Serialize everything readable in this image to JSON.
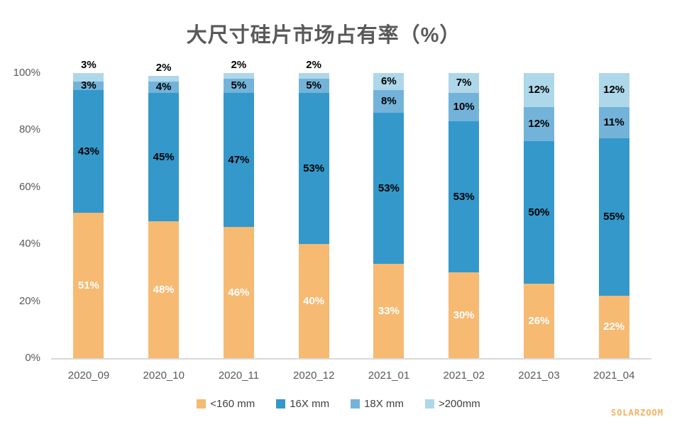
{
  "title": "大尺寸硅片市场占有率（%）",
  "watermark": "SOLARZOOM",
  "colors": {
    "axis_line": "#d9d9d9",
    "axis_text": "#595959",
    "title_text": "#595959",
    "watermark_text": "#f3b163"
  },
  "chart_data": {
    "type": "bar",
    "stacked": true,
    "title": "大尺寸硅片市场占有率（%）",
    "xlabel": "",
    "ylabel": "",
    "ylim": [
      0,
      100
    ],
    "grid": false,
    "legend_position": "bottom",
    "y_ticks": [
      "0%",
      "20%",
      "40%",
      "60%",
      "80%",
      "100%"
    ],
    "categories": [
      "2020_09",
      "2020_10",
      "2020_11",
      "2020_12",
      "2021_01",
      "2021_02",
      "2021_03",
      "2021_04"
    ],
    "series": [
      {
        "name": "<160 mm",
        "color": "#f6ba73",
        "label_color": "#ffffff",
        "values": [
          51,
          48,
          46,
          40,
          33,
          30,
          26,
          22
        ]
      },
      {
        "name": "16X mm",
        "color": "#3498cb",
        "label_color": "#000000",
        "values": [
          43,
          45,
          47,
          53,
          53,
          53,
          50,
          55
        ]
      },
      {
        "name": "18X mm",
        "color": "#73b3da",
        "label_color": "#000000",
        "values": [
          3,
          4,
          5,
          5,
          8,
          10,
          12,
          11
        ]
      },
      {
        "name": ">200mm",
        "color": "#aed7ea",
        "label_color": "#000000",
        "values": [
          3,
          2,
          2,
          2,
          6,
          7,
          12,
          12
        ]
      }
    ],
    "data_labels": "percent-inside; values of 3% or less on the top segment are drawn above the bar"
  }
}
